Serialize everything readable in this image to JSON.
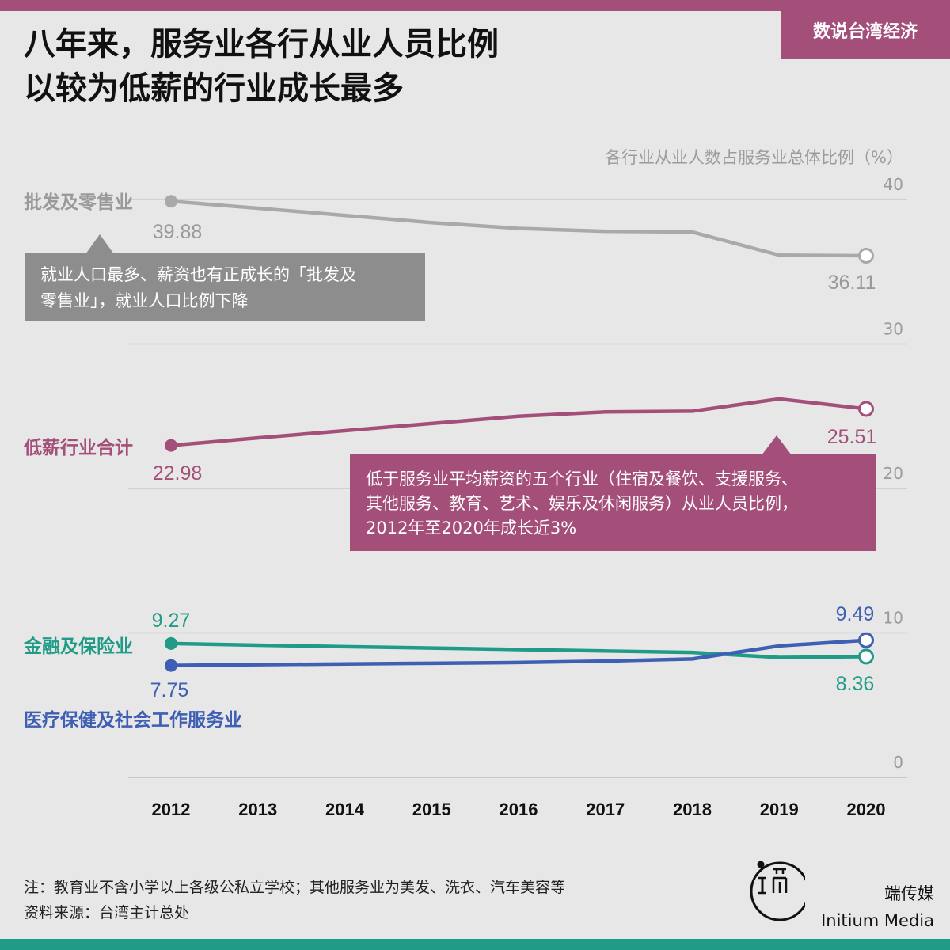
{
  "tag": "数说台湾经济",
  "title_lines": [
    "八年来，服务业各行从业人员比例",
    "以较为低薪的行业成长最多"
  ],
  "chart_data": {
    "type": "line",
    "ylabel": "各行业从业人数占服务业总体比例（%）",
    "ylim": [
      0,
      40
    ],
    "yticks": [
      0,
      10,
      20,
      30,
      40
    ],
    "grid": true,
    "x": [
      2012,
      2013,
      2014,
      2015,
      2016,
      2017,
      2018,
      2019,
      2020
    ],
    "series": [
      {
        "name": "批发及零售业",
        "color": "#a9a9a9",
        "labelColor": "#9a9a9a",
        "values": [
          39.88,
          39.4,
          38.9,
          38.4,
          38.0,
          37.8,
          37.75,
          36.15,
          36.11
        ],
        "startLabel": "39.88",
        "endLabel": "36.11"
      },
      {
        "name": "低薪行业合计",
        "color": "#a44f7a",
        "labelColor": "#a44f7a",
        "values": [
          22.98,
          23.5,
          24.0,
          24.5,
          25.0,
          25.3,
          25.35,
          26.2,
          25.51
        ],
        "startLabel": "22.98",
        "endLabel": "25.51"
      },
      {
        "name": "金融及保险业",
        "color": "#1f9b87",
        "labelColor": "#1f9b87",
        "values": [
          9.27,
          9.15,
          9.05,
          8.95,
          8.85,
          8.75,
          8.65,
          8.3,
          8.36
        ],
        "startLabel": "9.27",
        "endLabel": "8.36"
      },
      {
        "name": "医疗保健及社会工作服务业",
        "color": "#3f5fb5",
        "labelColor": "#3f5fb5",
        "values": [
          7.75,
          7.8,
          7.85,
          7.9,
          7.95,
          8.05,
          8.2,
          9.1,
          9.49
        ],
        "startLabel": "7.75",
        "endLabel": "9.49"
      }
    ]
  },
  "callouts": {
    "gray": [
      "就业人口最多、薪资也有正成长的「批发及",
      "零售业」，就业人口比例下降"
    ],
    "purple": [
      "低于服务业平均薪资的五个行业（住宿及餐饮、支援服务、",
      "其他服务、教育、艺术、娱乐及休闲服务）从业人员比例，",
      "2012年至2020年成长近3%"
    ]
  },
  "notes": [
    "注：教育业不含小学以上各级公私立学校；其他服务业为美发、洗衣、汽车美容等",
    "资料来源：台湾主计总处"
  ],
  "brand": {
    "cn": "端传媒",
    "en": "Initium Media"
  }
}
